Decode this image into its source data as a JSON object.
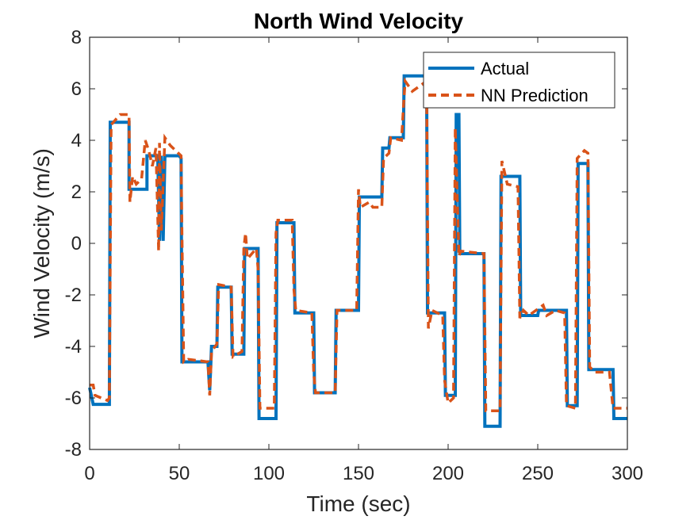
{
  "chart_data": {
    "type": "line",
    "title": "North Wind Velocity",
    "xlabel": "Time (sec)",
    "ylabel": "Wind Velocity (m/s)",
    "xlim": [
      0,
      300
    ],
    "ylim": [
      -8,
      8
    ],
    "xticks": [
      "0",
      "50",
      "100",
      "150",
      "200",
      "250",
      "300"
    ],
    "yticks": [
      "8",
      "6",
      "4",
      "2",
      "0",
      "-2",
      "-4",
      "-6",
      "-8"
    ],
    "grid": false,
    "legend_position": "top-right",
    "series": [
      {
        "name": "Actual",
        "color": "#0072BD",
        "style": "solid",
        "points": [
          [
            0,
            -5.6
          ],
          [
            2,
            -6.25
          ],
          [
            11,
            -6.25
          ],
          [
            11.5,
            4.7
          ],
          [
            22,
            4.7
          ],
          [
            22,
            2.1
          ],
          [
            32,
            2.1
          ],
          [
            32,
            3.4
          ],
          [
            38,
            3.4
          ],
          [
            39,
            0.1
          ],
          [
            40,
            3.4
          ],
          [
            41,
            0.1
          ],
          [
            42,
            3.4
          ],
          [
            50,
            3.4
          ],
          [
            51,
            3.3
          ],
          [
            51.5,
            -4.6
          ],
          [
            66,
            -4.6
          ],
          [
            67,
            -5.7
          ],
          [
            68,
            -4.0
          ],
          [
            71,
            -4.0
          ],
          [
            71.5,
            -1.7
          ],
          [
            79,
            -1.7
          ],
          [
            79.5,
            -4.3
          ],
          [
            86,
            -4.3
          ],
          [
            86.5,
            -0.2
          ],
          [
            94,
            -0.2
          ],
          [
            94.5,
            -6.8
          ],
          [
            104,
            -6.8
          ],
          [
            104.5,
            0.8
          ],
          [
            114,
            0.8
          ],
          [
            114.5,
            -2.7
          ],
          [
            125,
            -2.7
          ],
          [
            125.5,
            -5.8
          ],
          [
            137,
            -5.8
          ],
          [
            137.5,
            -2.6
          ],
          [
            150,
            -2.6
          ],
          [
            150.5,
            1.8
          ],
          [
            163,
            1.8
          ],
          [
            163.5,
            3.7
          ],
          [
            167,
            3.7
          ],
          [
            167.5,
            4.1
          ],
          [
            175,
            4.1
          ],
          [
            175.5,
            6.5
          ],
          [
            188,
            6.5
          ],
          [
            188.5,
            -2.7
          ],
          [
            198,
            -2.7
          ],
          [
            198.5,
            -5.9
          ],
          [
            204,
            -5.9
          ],
          [
            204.5,
            5.0
          ],
          [
            206,
            5.0
          ],
          [
            206.5,
            -0.4
          ],
          [
            220,
            -0.4
          ],
          [
            220.5,
            -7.1
          ],
          [
            229,
            -7.1
          ],
          [
            229.5,
            2.6
          ],
          [
            240,
            2.6
          ],
          [
            240.5,
            -2.8
          ],
          [
            250,
            -2.8
          ],
          [
            250.5,
            -2.6
          ],
          [
            266,
            -2.6
          ],
          [
            266.5,
            -6.3
          ],
          [
            272,
            -6.3
          ],
          [
            272.5,
            3.1
          ],
          [
            278,
            3.1
          ],
          [
            278.5,
            -4.9
          ],
          [
            292,
            -4.9
          ],
          [
            292.5,
            -6.8
          ],
          [
            300,
            -6.8
          ]
        ]
      },
      {
        "name": "NN Prediction",
        "color": "#D95319",
        "style": "dashed",
        "points": [
          [
            0,
            -5.5
          ],
          [
            2,
            -5.5
          ],
          [
            3,
            -5.9
          ],
          [
            10,
            -6.1
          ],
          [
            11,
            -6.0
          ],
          [
            12,
            4.6
          ],
          [
            17,
            5.0
          ],
          [
            22,
            5.0
          ],
          [
            22.5,
            1.6
          ],
          [
            24,
            2.6
          ],
          [
            26,
            2.3
          ],
          [
            29,
            2.5
          ],
          [
            31,
            4.0
          ],
          [
            33,
            3.6
          ],
          [
            35,
            3.0
          ],
          [
            37,
            3.7
          ],
          [
            38,
            1.0
          ],
          [
            38.5,
            -0.3
          ],
          [
            39,
            3.9
          ],
          [
            40,
            0.5
          ],
          [
            42,
            4.1
          ],
          [
            45,
            3.8
          ],
          [
            48,
            3.6
          ],
          [
            51,
            3.4
          ],
          [
            51.5,
            0.4
          ],
          [
            52.5,
            -4.6
          ],
          [
            55,
            -4.5
          ],
          [
            66,
            -4.6
          ],
          [
            67,
            -5.9
          ],
          [
            68,
            -4.2
          ],
          [
            71,
            -3.9
          ],
          [
            72,
            -1.6
          ],
          [
            79,
            -1.7
          ],
          [
            80,
            -4.4
          ],
          [
            85,
            -4.2
          ],
          [
            86,
            -0.2
          ],
          [
            87,
            0.4
          ],
          [
            88,
            -0.6
          ],
          [
            93,
            -0.2
          ],
          [
            94,
            -1.0
          ],
          [
            95,
            -6.4
          ],
          [
            103,
            -6.4
          ],
          [
            104,
            0.4
          ],
          [
            105,
            0.9
          ],
          [
            113,
            0.9
          ],
          [
            114,
            -1.8
          ],
          [
            115,
            -2.6
          ],
          [
            124,
            -2.7
          ],
          [
            125,
            -5.0
          ],
          [
            126,
            -5.8
          ],
          [
            137,
            -5.8
          ],
          [
            138,
            -2.6
          ],
          [
            149,
            -2.6
          ],
          [
            150,
            2.1
          ],
          [
            151,
            1.4
          ],
          [
            156,
            1.6
          ],
          [
            158,
            1.4
          ],
          [
            163,
            1.4
          ],
          [
            164,
            3.3
          ],
          [
            167,
            3.5
          ],
          [
            168,
            4.1
          ],
          [
            174,
            4.0
          ],
          [
            175,
            5.2
          ],
          [
            176,
            6.3
          ],
          [
            180,
            5.9
          ],
          [
            186,
            6.2
          ],
          [
            188,
            6.0
          ],
          [
            189,
            -3.3
          ],
          [
            191,
            -2.6
          ],
          [
            197,
            -2.8
          ],
          [
            198,
            -5.3
          ],
          [
            200,
            -6.2
          ],
          [
            203,
            -6.0
          ],
          [
            204,
            4.5
          ],
          [
            206,
            -0.5
          ],
          [
            207,
            -0.3
          ],
          [
            220,
            -0.4
          ],
          [
            221,
            -6.5
          ],
          [
            229,
            -6.5
          ],
          [
            230,
            3.2
          ],
          [
            233,
            2.3
          ],
          [
            239,
            2.2
          ],
          [
            240,
            -2.9
          ],
          [
            242,
            -2.6
          ],
          [
            245,
            -2.8
          ],
          [
            249,
            -2.6
          ],
          [
            253,
            -2.4
          ],
          [
            255,
            -2.8
          ],
          [
            260,
            -2.6
          ],
          [
            265,
            -2.7
          ],
          [
            266,
            -6.3
          ],
          [
            271,
            -6.4
          ],
          [
            272,
            3.3
          ],
          [
            276,
            3.6
          ],
          [
            278,
            3.5
          ],
          [
            279,
            -4.8
          ],
          [
            282,
            -5.0
          ],
          [
            290,
            -5.0
          ],
          [
            292,
            -6.4
          ],
          [
            300,
            -6.4
          ]
        ]
      }
    ]
  }
}
